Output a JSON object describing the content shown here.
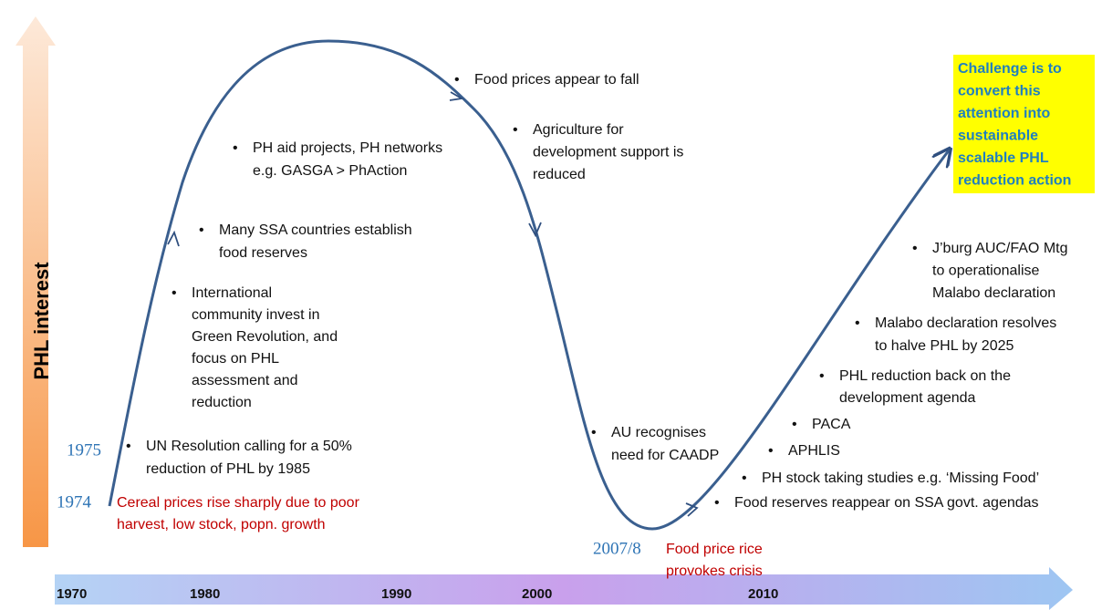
{
  "axis_label": "PHL interest",
  "timeline": [
    "1970",
    "1980",
    "1990",
    "2000",
    "2010"
  ],
  "year_labels": [
    "1975",
    "1974",
    "2007/8"
  ],
  "red_notes": [
    {
      "lines": [
        "Cereal prices rise sharply due to poor",
        "harvest, low stock, popn. growth"
      ]
    },
    {
      "lines": [
        "Food price rice",
        "provokes crisis"
      ]
    }
  ],
  "bullets": [
    {
      "lines": [
        "Food prices appear to fall"
      ]
    },
    {
      "lines": [
        "Agriculture for",
        "development support is",
        "reduced"
      ]
    },
    {
      "lines": [
        "PH aid projects, PH networks",
        "e.g. GASGA > PhAction"
      ]
    },
    {
      "lines": [
        "Many SSA countries establish",
        "food reserves"
      ]
    },
    {
      "lines": [
        "International",
        "community invest in",
        "Green Revolution, and",
        "focus on PHL",
        "assessment and",
        "reduction"
      ]
    },
    {
      "lines": [
        "UN Resolution calling for a 50%",
        "reduction of PHL by 1985"
      ]
    },
    {
      "lines": [
        "AU recognises",
        "need for CAADP"
      ]
    },
    {
      "lines": [
        "J’burg AUC/FAO  Mtg",
        "to operationalise",
        "Malabo declaration"
      ]
    },
    {
      "lines": [
        "Malabo declaration resolves",
        "to halve PHL by 2025"
      ]
    },
    {
      "lines": [
        "PHL reduction back on the",
        "development agenda"
      ]
    },
    {
      "lines": [
        "PACA"
      ]
    },
    {
      "lines": [
        "APHLIS"
      ]
    },
    {
      "lines": [
        "PH stock taking studies e.g. ‘Missing Food’"
      ]
    },
    {
      "lines": [
        "Food reserves reappear on SSA govt. agendas"
      ]
    }
  ],
  "callout": {
    "lines": [
      "Challenge is to",
      "convert this",
      "attention into",
      "sustainable",
      "scalable PHL",
      "reduction action"
    ]
  }
}
